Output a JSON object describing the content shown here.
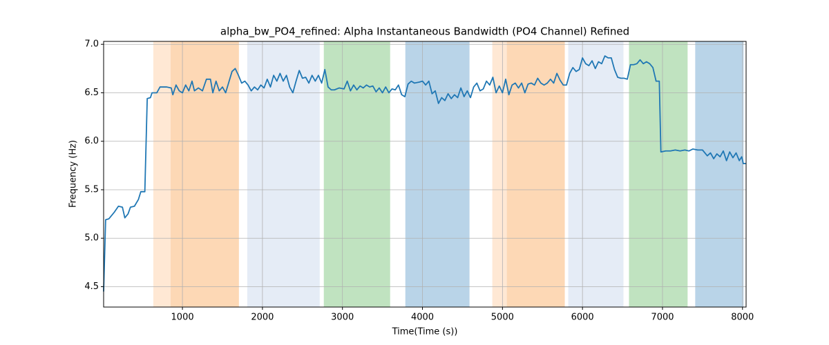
{
  "chart_data": {
    "type": "line",
    "title": "alpha_bw_PO4_refined: Alpha Instantaneous Bandwidth (PO4 Channel) Refined",
    "xlabel": "Time(Time (s))",
    "ylabel": "Frequency (Hz)",
    "xlim": [
      15,
      8045
    ],
    "ylim": [
      4.29,
      7.03
    ],
    "xticks": [
      1000,
      2000,
      3000,
      4000,
      5000,
      6000,
      7000,
      8000
    ],
    "yticks": [
      4.5,
      {
        "value": 5,
        "label": "5.0"
      },
      5.5,
      {
        "value": 6,
        "label": "6.0"
      },
      6.5,
      {
        "value": 7,
        "label": "7.0"
      }
    ],
    "grid": true,
    "spans": [
      {
        "start": 636,
        "end": 852,
        "color": "#ffe8d4"
      },
      {
        "start": 852,
        "end": 1706,
        "color": "#fdd8b5"
      },
      {
        "start": 1810,
        "end": 2716,
        "color": "#e5ecf6"
      },
      {
        "start": 2767,
        "end": 3596,
        "color": "#c0e3c0"
      },
      {
        "start": 3786,
        "end": 4588,
        "color": "#b9d4e8"
      },
      {
        "start": 4873,
        "end": 5054,
        "color": "#ffe8d4"
      },
      {
        "start": 5054,
        "end": 5779,
        "color": "#fdd8b5"
      },
      {
        "start": 5822,
        "end": 6512,
        "color": "#e5ecf6"
      },
      {
        "start": 6581,
        "end": 7314,
        "color": "#c0e3c0"
      },
      {
        "start": 7409,
        "end": 8013,
        "color": "#b9d4e8"
      }
    ],
    "x": [
      15,
      40,
      80,
      150,
      200,
      250,
      280,
      320,
      350,
      400,
      450,
      480,
      530,
      560,
      600,
      620,
      680,
      720,
      800,
      860,
      880,
      920,
      960,
      1000,
      1040,
      1080,
      1120,
      1150,
      1200,
      1250,
      1300,
      1350,
      1380,
      1420,
      1460,
      1500,
      1540,
      1580,
      1620,
      1660,
      1700,
      1740,
      1780,
      1820,
      1860,
      1900,
      1940,
      1980,
      2020,
      2060,
      2100,
      2140,
      2180,
      2220,
      2260,
      2300,
      2340,
      2380,
      2420,
      2460,
      2500,
      2540,
      2580,
      2620,
      2660,
      2700,
      2740,
      2780,
      2820,
      2860,
      2900,
      2960,
      3020,
      3060,
      3100,
      3140,
      3180,
      3220,
      3260,
      3300,
      3340,
      3380,
      3420,
      3460,
      3500,
      3540,
      3580,
      3620,
      3660,
      3700,
      3740,
      3780,
      3820,
      3860,
      3900,
      3960,
      4000,
      4040,
      4080,
      4120,
      4160,
      4200,
      4240,
      4280,
      4320,
      4360,
      4400,
      4440,
      4480,
      4520,
      4560,
      4600,
      4640,
      4680,
      4720,
      4760,
      4800,
      4840,
      4880,
      4920,
      4960,
      5000,
      5040,
      5080,
      5120,
      5160,
      5200,
      5240,
      5280,
      5320,
      5360,
      5400,
      5440,
      5480,
      5520,
      5560,
      5600,
      5640,
      5680,
      5720,
      5760,
      5800,
      5840,
      5880,
      5920,
      5960,
      6000,
      6040,
      6080,
      6120,
      6160,
      6200,
      6240,
      6280,
      6320,
      6360,
      6400,
      6440,
      6480,
      6520,
      6560,
      6600,
      6640,
      6680,
      6720,
      6760,
      6800,
      6840,
      6880,
      6920,
      6960,
      6980,
      7040,
      7100,
      7160,
      7220,
      7280,
      7330,
      7380,
      7440,
      7500,
      7560,
      7600,
      7640,
      7680,
      7720,
      7760,
      7800,
      7840,
      7880,
      7920,
      7960,
      7990,
      8010,
      8040
    ],
    "series": [
      {
        "color": "#1f77b4",
        "values": [
          4.45,
          5.19,
          5.2,
          5.27,
          5.33,
          5.32,
          5.21,
          5.25,
          5.32,
          5.33,
          5.4,
          5.48,
          5.48,
          6.44,
          6.45,
          6.5,
          6.5,
          6.56,
          6.56,
          6.55,
          6.48,
          6.58,
          6.52,
          6.5,
          6.58,
          6.52,
          6.62,
          6.52,
          6.55,
          6.52,
          6.64,
          6.64,
          6.5,
          6.62,
          6.52,
          6.56,
          6.5,
          6.61,
          6.72,
          6.75,
          6.68,
          6.6,
          6.62,
          6.58,
          6.52,
          6.56,
          6.53,
          6.58,
          6.55,
          6.64,
          6.56,
          6.68,
          6.62,
          6.7,
          6.62,
          6.68,
          6.56,
          6.5,
          6.62,
          6.73,
          6.65,
          6.66,
          6.6,
          6.68,
          6.62,
          6.68,
          6.6,
          6.74,
          6.56,
          6.53,
          6.53,
          6.55,
          6.54,
          6.62,
          6.52,
          6.58,
          6.53,
          6.57,
          6.55,
          6.58,
          6.56,
          6.57,
          6.51,
          6.55,
          6.5,
          6.56,
          6.5,
          6.54,
          6.53,
          6.58,
          6.48,
          6.46,
          6.59,
          6.62,
          6.6,
          6.61,
          6.62,
          6.58,
          6.62,
          6.49,
          6.52,
          6.39,
          6.45,
          6.42,
          6.49,
          6.44,
          6.48,
          6.45,
          6.55,
          6.46,
          6.52,
          6.45,
          6.56,
          6.6,
          6.52,
          6.54,
          6.62,
          6.58,
          6.66,
          6.5,
          6.57,
          6.5,
          6.64,
          6.48,
          6.58,
          6.6,
          6.55,
          6.6,
          6.5,
          6.59,
          6.6,
          6.58,
          6.65,
          6.6,
          6.58,
          6.6,
          6.64,
          6.6,
          6.7,
          6.63,
          6.58,
          6.58,
          6.7,
          6.76,
          6.72,
          6.74,
          6.86,
          6.8,
          6.78,
          6.83,
          6.75,
          6.82,
          6.8,
          6.88,
          6.86,
          6.86,
          6.74,
          6.66,
          6.65,
          6.65,
          6.64,
          6.79,
          6.79,
          6.8,
          6.84,
          6.8,
          6.82,
          6.8,
          6.76,
          6.62,
          6.62,
          5.89,
          5.9,
          5.9,
          5.91,
          5.9,
          5.91,
          5.9,
          5.92,
          5.91,
          5.91,
          5.85,
          5.88,
          5.82,
          5.87,
          5.84,
          5.9,
          5.8,
          5.89,
          5.83,
          5.88,
          5.8,
          5.84,
          5.77,
          5.77
        ]
      }
    ]
  }
}
